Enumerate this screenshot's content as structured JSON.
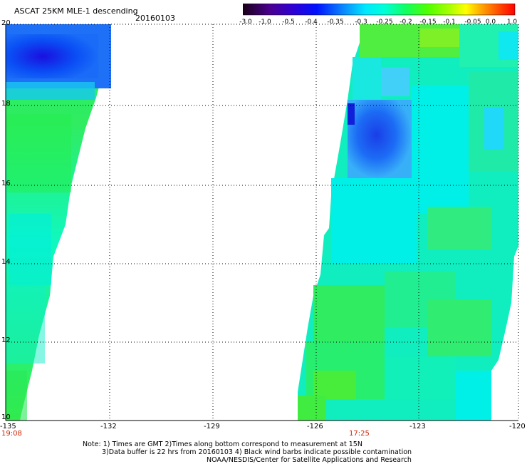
{
  "header": {
    "title": "ASCAT 25KM MLE-1 descending",
    "date": "20160103"
  },
  "colorbar": {
    "labels": [
      "-3.0",
      "-1.0",
      "-0.5",
      "-0.4",
      "-0.35",
      "-0.3",
      "-0.25",
      "-0.2",
      "-0.15",
      "-0.1",
      "-0.05",
      "0.0",
      "1.0"
    ],
    "colors": [
      "#2a0028",
      "#5a00b4",
      "#2020e6",
      "#0a5cff",
      "#14a8ff",
      "#00f2ff",
      "#10f8b0",
      "#22f040",
      "#70f000",
      "#c8f000",
      "#f8e000",
      "#f87000",
      "#e80000"
    ]
  },
  "axes": {
    "x_ticks": [
      "-135",
      "-132",
      "-129",
      "-126",
      "-123",
      "-120"
    ],
    "y_ticks": [
      "20",
      "18",
      "16",
      "14",
      "12",
      "10"
    ]
  },
  "times": {
    "left_pass": "19:08",
    "right_pass": "17:25"
  },
  "notes": {
    "line1": "Note: 1) Times are GMT 2)Times along bottom correspond to measurement at 15N",
    "line2": "3)Data buffer is 22 hrs from 20160103 4) Black wind barbs indicate possible contamination",
    "line3": "NOAA/NESDIS/Center for Satellite Applications and Research"
  }
}
